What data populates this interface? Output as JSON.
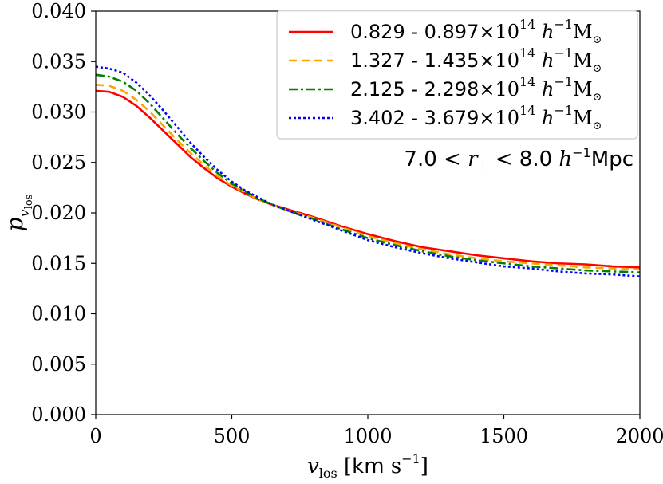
{
  "chart_data": {
    "type": "line",
    "title": "",
    "xlabel": "v_los [km s^-1]",
    "ylabel": "p_v_los",
    "xlim": [
      0,
      2000
    ],
    "ylim": [
      0.0,
      0.04
    ],
    "xticks": [
      0,
      500,
      1000,
      1500,
      2000
    ],
    "yticks": [
      0.0,
      0.005,
      0.01,
      0.015,
      0.02,
      0.025,
      0.03,
      0.035,
      0.04
    ],
    "xtick_labels": [
      "0",
      "500",
      "1000",
      "1500",
      "2000"
    ],
    "ytick_labels": [
      "0.000",
      "0.005",
      "0.010",
      "0.015",
      "0.020",
      "0.025",
      "0.030",
      "0.035",
      "0.040"
    ],
    "annotation": "7.0 < r⊥ < 8.0 h⁻¹Mpc",
    "legend_position": "top-right",
    "grid": false,
    "x": [
      0,
      50,
      100,
      150,
      200,
      250,
      300,
      350,
      400,
      450,
      500,
      550,
      600,
      650,
      700,
      750,
      800,
      900,
      1000,
      1100,
      1200,
      1300,
      1400,
      1500,
      1600,
      1700,
      1800,
      1900,
      2000
    ],
    "series": [
      {
        "name": "0.829 - 0.897×10¹⁴ h⁻¹M☉",
        "color": "#ff0000",
        "dash": "solid",
        "values": [
          0.0321,
          0.032,
          0.0315,
          0.0306,
          0.0294,
          0.0281,
          0.0268,
          0.0255,
          0.0244,
          0.0234,
          0.0226,
          0.0219,
          0.0213,
          0.0208,
          0.0204,
          0.02,
          0.0196,
          0.0187,
          0.0179,
          0.0172,
          0.0166,
          0.0162,
          0.0158,
          0.0155,
          0.0152,
          0.015,
          0.0149,
          0.0147,
          0.0146
        ]
      },
      {
        "name": "1.327 - 1.435×10¹⁴ h⁻¹M☉",
        "color": "#ffa500",
        "dash": "dashed",
        "values": [
          0.0327,
          0.0326,
          0.0321,
          0.0312,
          0.03,
          0.0286,
          0.0272,
          0.0259,
          0.0247,
          0.0236,
          0.0227,
          0.022,
          0.0213,
          0.0208,
          0.0203,
          0.0199,
          0.0195,
          0.0186,
          0.0177,
          0.017,
          0.0164,
          0.0159,
          0.0155,
          0.0152,
          0.015,
          0.0148,
          0.0146,
          0.0145,
          0.0144
        ]
      },
      {
        "name": "2.125 - 2.298×10¹⁴ h⁻¹M☉",
        "color": "#008000",
        "dash": "dashdot",
        "values": [
          0.0337,
          0.0335,
          0.033,
          0.0321,
          0.0308,
          0.0293,
          0.0278,
          0.0264,
          0.0251,
          0.0239,
          0.0229,
          0.0221,
          0.0214,
          0.0208,
          0.0203,
          0.0198,
          0.0194,
          0.0184,
          0.0175,
          0.0168,
          0.0162,
          0.0157,
          0.0153,
          0.015,
          0.0147,
          0.0145,
          0.0143,
          0.0142,
          0.0141
        ]
      },
      {
        "name": "3.402 - 3.679×10¹⁴ h⁻¹M☉",
        "color": "#0000ff",
        "dash": "dotted",
        "values": [
          0.0345,
          0.0343,
          0.0339,
          0.0329,
          0.0316,
          0.0301,
          0.0285,
          0.0269,
          0.0255,
          0.0242,
          0.0231,
          0.0222,
          0.0215,
          0.0208,
          0.0203,
          0.0198,
          0.0193,
          0.0183,
          0.0173,
          0.0166,
          0.016,
          0.0155,
          0.0151,
          0.0147,
          0.0145,
          0.0142,
          0.014,
          0.0139,
          0.0137
        ]
      }
    ]
  }
}
